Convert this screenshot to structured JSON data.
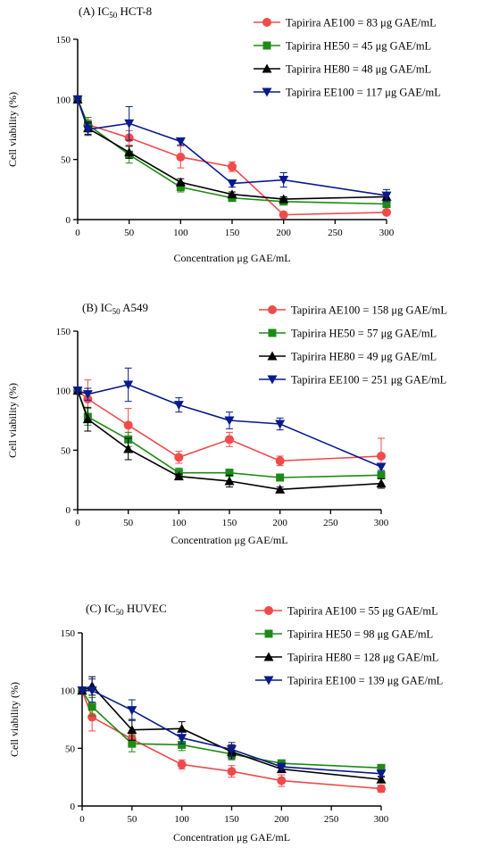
{
  "chart_data": [
    {
      "type": "line",
      "panel_label": "(A) IC",
      "panel_sub": "50",
      "panel_cell": " HCT-8",
      "ylabel": "Cell viability (%)",
      "xlabel": "Concentration μg GAE/mL",
      "ylim": [
        0,
        150
      ],
      "xlim": [
        0,
        300
      ],
      "yticks": [
        0,
        50,
        100,
        150
      ],
      "xticks": [
        0,
        50,
        100,
        150,
        200,
        250,
        300
      ],
      "x": [
        0,
        10,
        50,
        100,
        150,
        200,
        300
      ],
      "series": [
        {
          "name": "Tapirira AE100 = 83 μg GAE/mL",
          "color": "#f04b4b",
          "marker": "circle",
          "values": [
            100,
            79,
            68,
            52,
            44,
            4,
            6
          ],
          "errors": [
            0,
            4,
            6,
            9,
            4,
            1,
            1
          ]
        },
        {
          "name": "Tapirira HE50 = 45 μg GAE/mL",
          "color": "#1e8a16",
          "marker": "square",
          "values": [
            100,
            79,
            54,
            27,
            18,
            15,
            13
          ],
          "errors": [
            0,
            6,
            7,
            4,
            2,
            2,
            2
          ]
        },
        {
          "name": "Tapirira HE80 = 48 μg GAE/mL",
          "color": "#000000",
          "marker": "triangle",
          "values": [
            100,
            76,
            56,
            31,
            21,
            17,
            19
          ],
          "errors": [
            0,
            5,
            5,
            3,
            2,
            2,
            2
          ]
        },
        {
          "name": "Tapirira EE100 = 117 μg GAE/mL",
          "color": "#0a1a8c",
          "marker": "triangle-down",
          "values": [
            100,
            75,
            80,
            65,
            30,
            33,
            20
          ],
          "errors": [
            0,
            5,
            14,
            3,
            3,
            6,
            5
          ]
        }
      ]
    },
    {
      "type": "line",
      "panel_label": "(B) IC",
      "panel_sub": "50",
      "panel_cell": " A549",
      "ylabel": "Cell viability (%)",
      "xlabel": "Concentration μg GAE/mL",
      "ylim": [
        0,
        150
      ],
      "xlim": [
        0,
        300
      ],
      "yticks": [
        0,
        50,
        100,
        150
      ],
      "xticks": [
        0,
        50,
        100,
        150,
        200,
        250,
        300
      ],
      "x": [
        0,
        10,
        50,
        100,
        150,
        200,
        300
      ],
      "series": [
        {
          "name": "Tapirira AE100 = 158 μg GAE/mL",
          "color": "#f04b4b",
          "marker": "circle",
          "values": [
            100,
            93,
            71,
            44,
            59,
            41,
            45
          ],
          "errors": [
            0,
            16,
            14,
            5,
            6,
            4,
            15
          ]
        },
        {
          "name": "Tapirira HE50 = 57 μg GAE/mL",
          "color": "#1e8a16",
          "marker": "square",
          "values": [
            100,
            78,
            59,
            31,
            31,
            27,
            29
          ],
          "errors": [
            0,
            7,
            6,
            4,
            3,
            2,
            2
          ]
        },
        {
          "name": "Tapirira HE80 =  49 μg GAE/mL",
          "color": "#000000",
          "marker": "triangle",
          "values": [
            100,
            76,
            51,
            28,
            24,
            17,
            22
          ],
          "errors": [
            0,
            10,
            9,
            2,
            5,
            2,
            4
          ]
        },
        {
          "name": "Tapirira EE100 = 251 μg GAE/mL",
          "color": "#0a1a8c",
          "marker": "triangle-down",
          "values": [
            100,
            97,
            105,
            88,
            75,
            72,
            36
          ],
          "errors": [
            0,
            5,
            14,
            6,
            7,
            5,
            3
          ]
        }
      ]
    },
    {
      "type": "line",
      "panel_label": "(C) IC",
      "panel_sub": "50",
      "panel_cell": " HUVEC",
      "ylabel": "Cell viability (%)",
      "xlabel": "Concentration μg GAE/mL",
      "ylim": [
        0,
        150
      ],
      "xlim": [
        0,
        300
      ],
      "yticks": [
        0,
        50,
        100,
        150
      ],
      "xticks": [
        0,
        50,
        100,
        150,
        200,
        250,
        300
      ],
      "x": [
        0,
        10,
        50,
        100,
        150,
        200,
        300
      ],
      "series": [
        {
          "name": "Tapirira AE100 = 55 μg GAE/mL",
          "color": "#f04b4b",
          "marker": "circle",
          "values": [
            100,
            77,
            58,
            36,
            30,
            22,
            15
          ],
          "errors": [
            0,
            12,
            4,
            4,
            5,
            5,
            3
          ]
        },
        {
          "name": "Tapirira HE50 = 98 μg GAE/mL",
          "color": "#1e8a16",
          "marker": "square",
          "values": [
            100,
            86,
            54,
            53,
            45,
            37,
            33
          ],
          "errors": [
            0,
            8,
            7,
            5,
            5,
            2,
            2
          ]
        },
        {
          "name": "Tapirira HE80 =  128 μg GAE/mL",
          "color": "#000000",
          "marker": "triangle",
          "values": [
            100,
            104,
            66,
            67,
            47,
            32,
            23
          ],
          "errors": [
            0,
            8,
            9,
            6,
            6,
            2,
            2
          ]
        },
        {
          "name": "Tapirira EE100 = 139 μg GAE/mL",
          "color": "#0a1a8c",
          "marker": "triangle-down",
          "values": [
            100,
            100,
            83,
            59,
            49,
            34,
            28
          ],
          "errors": [
            0,
            10,
            9,
            5,
            6,
            3,
            2
          ]
        }
      ]
    }
  ]
}
